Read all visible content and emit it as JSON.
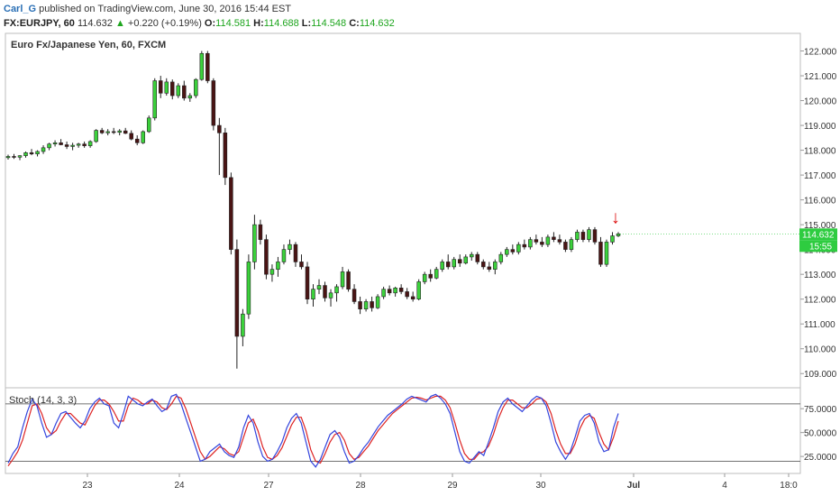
{
  "header": {
    "author": "Carl_G",
    "published_text": "published on TradingView.com, June 30, 2016 15:44 EST",
    "symbol": "FX:EURJPY, 60",
    "last": "114.632",
    "change_arrow": "▲",
    "change": "+0.220 (+0.19%)",
    "o_label": "O:",
    "o_value": "114.581",
    "h_label": "H:",
    "h_value": "114.688",
    "l_label": "L:",
    "l_value": "114.548",
    "c_label": "C:",
    "c_value": "114.632"
  },
  "colors": {
    "up": "#3bd13b",
    "down": "#4a1414",
    "stoch_k": "#3344dd",
    "stoch_d": "#dd2222",
    "price_badge": "#2ecc40",
    "arrow": "#dd1111"
  },
  "chart_data": [
    {
      "type": "candlestick",
      "title": "Euro Fx/Japanese Yen, 60, FXCM",
      "ylim": [
        108.5,
        122.6
      ],
      "y_ticks": [
        "109.000",
        "110.000",
        "111.000",
        "112.000",
        "113.000",
        "114.000",
        "115.000",
        "116.000",
        "117.000",
        "118.000",
        "119.000",
        "120.000",
        "121.000",
        "122.000"
      ],
      "x_ticks": [
        "23",
        "24",
        "27",
        "28",
        "29",
        "30",
        "Jul",
        "4",
        "18:0"
      ],
      "last_price_label": "114.632",
      "last_time_label": "15:55",
      "arrow_annotation": "↓",
      "ohlc": [
        [
          117.7,
          117.82,
          117.62,
          117.75
        ],
        [
          117.75,
          117.85,
          117.65,
          117.72
        ],
        [
          117.72,
          117.8,
          117.6,
          117.78
        ],
        [
          117.78,
          117.95,
          117.7,
          117.9
        ],
        [
          117.9,
          118.05,
          117.8,
          117.85
        ],
        [
          117.85,
          118.0,
          117.75,
          117.95
        ],
        [
          117.95,
          118.2,
          117.85,
          118.1
        ],
        [
          118.1,
          118.3,
          118.0,
          118.25
        ],
        [
          118.25,
          118.4,
          118.15,
          118.3
        ],
        [
          118.3,
          118.45,
          118.2,
          118.22
        ],
        [
          118.22,
          118.35,
          118.05,
          118.15
        ],
        [
          118.15,
          118.3,
          118.0,
          118.2
        ],
        [
          118.2,
          118.3,
          118.1,
          118.25
        ],
        [
          118.25,
          118.35,
          118.1,
          118.18
        ],
        [
          118.18,
          118.4,
          118.1,
          118.35
        ],
        [
          118.35,
          118.85,
          118.3,
          118.8
        ],
        [
          118.8,
          118.9,
          118.65,
          118.7
        ],
        [
          118.7,
          118.85,
          118.6,
          118.75
        ],
        [
          118.75,
          118.9,
          118.65,
          118.72
        ],
        [
          118.72,
          118.85,
          118.6,
          118.78
        ],
        [
          118.78,
          118.9,
          118.65,
          118.68
        ],
        [
          118.68,
          118.8,
          118.4,
          118.45
        ],
        [
          118.45,
          118.6,
          118.2,
          118.3
        ],
        [
          118.3,
          118.8,
          118.25,
          118.75
        ],
        [
          118.75,
          119.4,
          118.7,
          119.3
        ],
        [
          119.3,
          120.9,
          119.2,
          120.8
        ],
        [
          120.8,
          121.0,
          120.1,
          120.3
        ],
        [
          120.3,
          120.9,
          120.2,
          120.75
        ],
        [
          120.75,
          120.85,
          120.05,
          120.2
        ],
        [
          120.2,
          120.7,
          120.1,
          120.6
        ],
        [
          120.6,
          120.8,
          120.0,
          120.1
        ],
        [
          120.1,
          120.3,
          119.95,
          120.2
        ],
        [
          120.2,
          120.9,
          120.1,
          120.85
        ],
        [
          120.85,
          122.0,
          120.8,
          121.9
        ],
        [
          121.9,
          122.0,
          120.7,
          120.8
        ],
        [
          120.8,
          120.9,
          118.8,
          119.0
        ],
        [
          119.0,
          119.3,
          117.0,
          118.7
        ],
        [
          118.7,
          118.9,
          116.6,
          116.9
        ],
        [
          116.9,
          117.1,
          113.8,
          114.0
        ],
        [
          114.0,
          114.4,
          109.2,
          110.5
        ],
        [
          110.5,
          111.6,
          110.1,
          111.4
        ],
        [
          111.4,
          113.8,
          111.2,
          113.5
        ],
        [
          113.5,
          115.4,
          113.2,
          115.0
        ],
        [
          115.0,
          115.2,
          114.2,
          114.4
        ],
        [
          114.4,
          114.6,
          112.8,
          113.0
        ],
        [
          113.0,
          113.4,
          112.7,
          113.2
        ],
        [
          113.2,
          113.7,
          112.9,
          113.5
        ],
        [
          113.5,
          114.2,
          113.4,
          114.0
        ],
        [
          114.0,
          114.4,
          113.8,
          114.2
        ],
        [
          114.2,
          114.3,
          113.3,
          113.5
        ],
        [
          113.5,
          113.8,
          113.2,
          113.3
        ],
        [
          113.3,
          113.5,
          111.8,
          112.0
        ],
        [
          112.0,
          112.6,
          111.7,
          112.4
        ],
        [
          112.4,
          112.8,
          112.2,
          112.55
        ],
        [
          112.55,
          112.7,
          111.9,
          112.05
        ],
        [
          112.05,
          112.4,
          111.7,
          112.25
        ],
        [
          112.25,
          112.6,
          111.9,
          112.5
        ],
        [
          112.5,
          113.3,
          112.4,
          113.1
        ],
        [
          113.1,
          113.2,
          112.3,
          112.4
        ],
        [
          112.4,
          112.6,
          111.8,
          111.9
        ],
        [
          111.9,
          112.1,
          111.4,
          111.6
        ],
        [
          111.6,
          112.0,
          111.5,
          111.9
        ],
        [
          111.9,
          112.1,
          111.5,
          111.65
        ],
        [
          111.65,
          112.2,
          111.6,
          112.1
        ],
        [
          112.1,
          112.5,
          112.0,
          112.4
        ],
        [
          112.4,
          112.55,
          112.15,
          112.25
        ],
        [
          112.25,
          112.5,
          112.1,
          112.45
        ],
        [
          112.45,
          112.6,
          112.2,
          112.3
        ],
        [
          112.3,
          112.45,
          112.0,
          112.1
        ],
        [
          112.1,
          112.3,
          111.9,
          112.0
        ],
        [
          112.0,
          112.8,
          111.95,
          112.7
        ],
        [
          112.7,
          113.1,
          112.6,
          113.0
        ],
        [
          113.0,
          113.2,
          112.7,
          112.85
        ],
        [
          112.85,
          113.3,
          112.8,
          113.2
        ],
        [
          113.2,
          113.6,
          113.1,
          113.5
        ],
        [
          113.5,
          113.8,
          113.2,
          113.3
        ],
        [
          113.3,
          113.7,
          113.2,
          113.6
        ],
        [
          113.6,
          113.8,
          113.3,
          113.45
        ],
        [
          113.45,
          113.8,
          113.4,
          113.7
        ],
        [
          113.7,
          113.9,
          113.55,
          113.8
        ],
        [
          113.8,
          113.9,
          113.4,
          113.5
        ],
        [
          113.5,
          113.6,
          113.2,
          113.3
        ],
        [
          113.3,
          113.5,
          113.1,
          113.2
        ],
        [
          113.2,
          113.6,
          113.0,
          113.5
        ],
        [
          113.5,
          113.9,
          113.4,
          113.8
        ],
        [
          113.8,
          114.1,
          113.7,
          114.0
        ],
        [
          114.0,
          114.2,
          113.8,
          113.9
        ],
        [
          113.9,
          114.3,
          113.8,
          114.2
        ],
        [
          114.2,
          114.4,
          114.0,
          114.1
        ],
        [
          114.1,
          114.5,
          114.0,
          114.4
        ],
        [
          114.4,
          114.6,
          114.2,
          114.3
        ],
        [
          114.3,
          114.5,
          114.1,
          114.2
        ],
        [
          114.2,
          114.6,
          114.1,
          114.5
        ],
        [
          114.5,
          114.7,
          114.3,
          114.4
        ],
        [
          114.4,
          114.6,
          114.2,
          114.3
        ],
        [
          114.3,
          114.4,
          113.9,
          114.0
        ],
        [
          114.0,
          114.5,
          113.9,
          114.4
        ],
        [
          114.4,
          114.8,
          114.3,
          114.7
        ],
        [
          114.7,
          114.8,
          114.3,
          114.4
        ],
        [
          114.4,
          114.9,
          114.3,
          114.8
        ],
        [
          114.8,
          114.9,
          114.2,
          114.3
        ],
        [
          114.3,
          114.5,
          113.3,
          113.4
        ],
        [
          113.4,
          114.4,
          113.3,
          114.3
        ],
        [
          114.3,
          114.7,
          114.2,
          114.55
        ],
        [
          114.55,
          114.7,
          114.5,
          114.63
        ]
      ],
      "stoch": {
        "title": "Stoch (14, 3, 3)",
        "ylim": [
          10,
          95
        ],
        "y_ticks": [
          "25.0000",
          "50.0000",
          "75.0000"
        ],
        "levels": [
          80,
          20
        ],
        "k": [
          18,
          28,
          35,
          55,
          72,
          85,
          78,
          60,
          45,
          48,
          60,
          70,
          72,
          66,
          60,
          55,
          62,
          75,
          82,
          86,
          80,
          78,
          60,
          55,
          70,
          88,
          84,
          80,
          78,
          82,
          85,
          78,
          72,
          75,
          88,
          90,
          80,
          65,
          50,
          35,
          20,
          22,
          30,
          34,
          38,
          30,
          26,
          24,
          35,
          55,
          68,
          60,
          40,
          25,
          20,
          22,
          30,
          40,
          55,
          65,
          70,
          60,
          40,
          20,
          14,
          22,
          35,
          48,
          52,
          45,
          30,
          18,
          20,
          26,
          34,
          40,
          48,
          56,
          62,
          68,
          72,
          76,
          80,
          85,
          88,
          86,
          84,
          82,
          88,
          90,
          86,
          80,
          70,
          50,
          30,
          20,
          18,
          24,
          30,
          26,
          40,
          55,
          72,
          82,
          86,
          80,
          76,
          72,
          78,
          84,
          88,
          86,
          78,
          60,
          40,
          30,
          22,
          30,
          45,
          62,
          68,
          70,
          60,
          40,
          30,
          32,
          55,
          70
        ],
        "d": [
          15,
          22,
          30,
          42,
          60,
          78,
          80,
          70,
          55,
          48,
          52,
          62,
          70,
          70,
          65,
          60,
          58,
          68,
          78,
          84,
          84,
          80,
          72,
          62,
          62,
          78,
          86,
          84,
          80,
          80,
          84,
          82,
          76,
          74,
          80,
          88,
          86,
          75,
          60,
          45,
          30,
          22,
          25,
          30,
          35,
          33,
          28,
          26,
          30,
          45,
          60,
          64,
          52,
          35,
          24,
          22,
          26,
          34,
          46,
          58,
          66,
          66,
          52,
          32,
          20,
          18,
          28,
          40,
          48,
          50,
          42,
          28,
          22,
          24,
          30,
          36,
          44,
          52,
          58,
          64,
          70,
          74,
          78,
          82,
          86,
          87,
          86,
          84,
          86,
          88,
          88,
          84,
          76,
          60,
          42,
          28,
          22,
          22,
          28,
          30,
          36,
          48,
          64,
          76,
          84,
          84,
          80,
          76,
          76,
          80,
          85,
          86,
          82,
          70,
          52,
          38,
          28,
          28,
          38,
          54,
          64,
          68,
          65,
          50,
          38,
          32,
          45,
          62
        ]
      }
    }
  ]
}
